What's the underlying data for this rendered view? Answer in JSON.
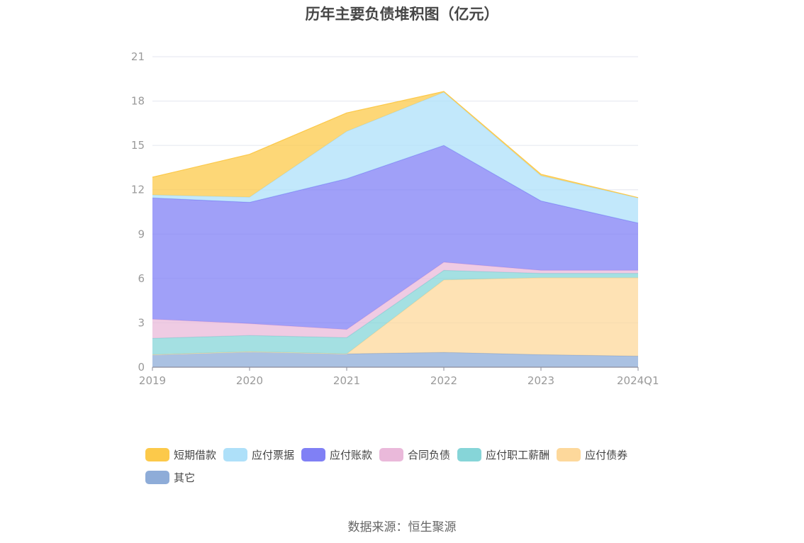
{
  "chart_data": {
    "type": "area",
    "stacked": true,
    "title": "历年主要负债堆积图（亿元）",
    "categories": [
      "2019",
      "2020",
      "2021",
      "2022",
      "2023",
      "2024Q1"
    ],
    "ylim": [
      0,
      21
    ],
    "yticks": [
      0,
      3,
      6,
      9,
      12,
      15,
      18,
      21
    ],
    "grid": true,
    "legend_position": "bottom",
    "series": [
      {
        "name": "其它",
        "color": "#8eacd8",
        "values": [
          0.85,
          1.05,
          0.9,
          1.0,
          0.85,
          0.75
        ]
      },
      {
        "name": "应付债券",
        "color": "#fdd89b",
        "values": [
          0,
          0,
          0,
          4.9,
          5.2,
          5.3
        ]
      },
      {
        "name": "应付职工薪酬",
        "color": "#86d5d8",
        "values": [
          1.1,
          1.1,
          1.1,
          0.65,
          0.3,
          0.3
        ]
      },
      {
        "name": "合同负债",
        "color": "#eab9da",
        "values": [
          1.3,
          0.8,
          0.55,
          0.55,
          0.2,
          0.2
        ]
      },
      {
        "name": "应付账款",
        "color": "#8080f5",
        "values": [
          8.2,
          8.2,
          10.2,
          7.9,
          4.7,
          3.2
        ]
      },
      {
        "name": "应付票据",
        "color": "#aee0f9",
        "values": [
          0.2,
          0.35,
          3.2,
          3.6,
          1.7,
          1.7
        ]
      },
      {
        "name": "短期借款",
        "color": "#fcc94a",
        "values": [
          1.2,
          2.9,
          1.25,
          0.05,
          0.1,
          0.02
        ]
      }
    ],
    "legend_order": [
      "短期借款",
      "应付票据",
      "应付账款",
      "合同负债",
      "应付职工薪酬",
      "应付债券",
      "其它"
    ]
  },
  "source_note": "数据来源：恒生聚源"
}
